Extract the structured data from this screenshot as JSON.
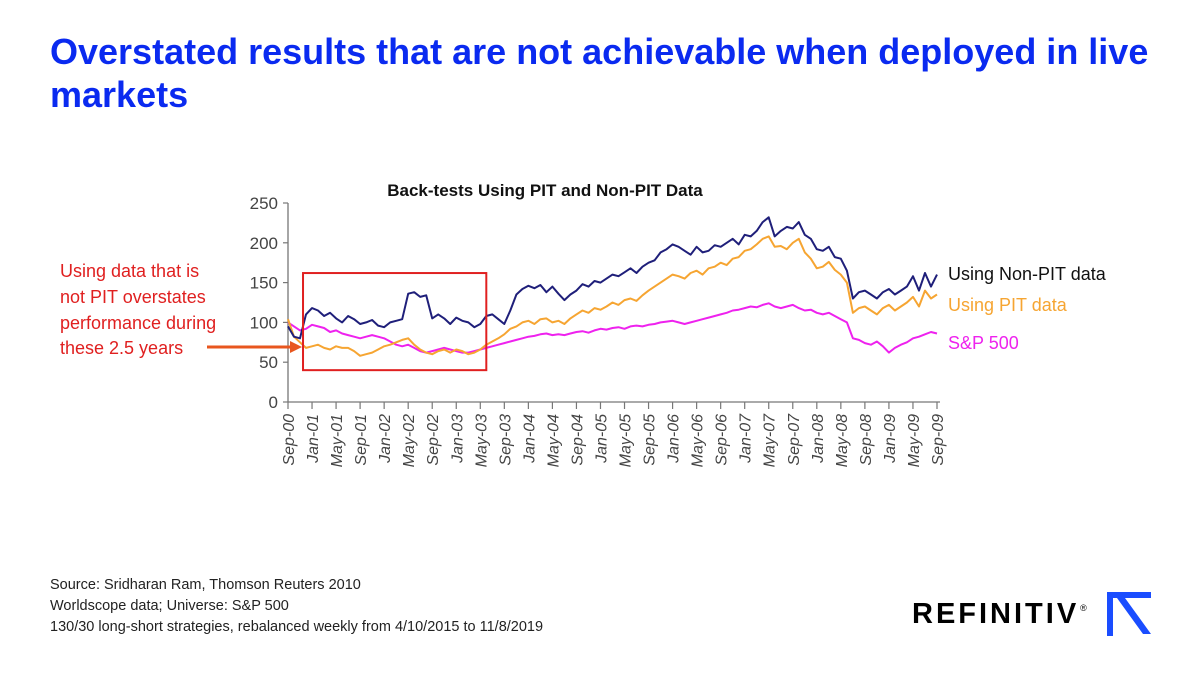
{
  "slide": {
    "title": "Overstated results that are not achievable when deployed in live markets"
  },
  "annotation": {
    "lines": [
      "Using data that is",
      "not PIT overstates",
      "performance during",
      "these 2.5 years"
    ]
  },
  "footer": {
    "lines": [
      "Source: Sridharan Ram, Thomson Reuters 2010",
      "Worldscope data; Universe: S&P 500",
      "130/30 long-short strategies, rebalanced weekly from 4/10/2015 to 11/8/2019"
    ]
  },
  "logo": {
    "text": "REFINITIV",
    "registered": "®"
  },
  "colors": {
    "title": "#0a2af0",
    "non_pit": "#1f1f7a",
    "pit": "#f6a532",
    "sp500": "#ee22ee",
    "annotation": "#e02020",
    "highlight_box": "#e02020",
    "arrow": "#e8561e",
    "logo_mark": "#1a4dff"
  },
  "chart_data": {
    "type": "line",
    "title": "Back-tests Using PIT and Non-PIT Data",
    "xlabel": "",
    "ylabel": "",
    "ylim": [
      0,
      250
    ],
    "yticks": [
      0,
      50,
      100,
      150,
      200,
      250
    ],
    "xlim": [
      0,
      108.5
    ],
    "xtick_labels": [
      "Sep-00",
      "Jan-01",
      "May-01",
      "Sep-01",
      "Jan-02",
      "May-02",
      "Sep-02",
      "Jan-03",
      "May-03",
      "Sep-03",
      "Jan-04",
      "May-04",
      "Sep-04",
      "Jan-05",
      "May-05",
      "Sep-05",
      "Jan-06",
      "May-06",
      "Sep-06",
      "Jan-07",
      "May-07",
      "Sep-07",
      "Jan-08",
      "May-08",
      "Sep-08",
      "Jan-09",
      "May-09",
      "Sep-09"
    ],
    "xtick_months": [
      0,
      4,
      8,
      12,
      16,
      20,
      24,
      28,
      32,
      36,
      40,
      44,
      48,
      52,
      56,
      60,
      64,
      68,
      72,
      76,
      80,
      84,
      88,
      92,
      96,
      100,
      104,
      108
    ],
    "highlight": {
      "from_month": 2.5,
      "to_month": 33,
      "y_from": 40,
      "y_to": 162
    },
    "series": [
      {
        "name": "Using Non-PIT data",
        "color": "#1f1f7a",
        "x": [
          0,
          1,
          2,
          3,
          4,
          5,
          6,
          7,
          8,
          9,
          10,
          11,
          12,
          13,
          14,
          15,
          16,
          17,
          18,
          19,
          20,
          21,
          22,
          23,
          24,
          25,
          26,
          27,
          28,
          29,
          30,
          31,
          32,
          33,
          34,
          35,
          36,
          37,
          38,
          39,
          40,
          41,
          42,
          43,
          44,
          45,
          46,
          47,
          48,
          49,
          50,
          51,
          52,
          53,
          54,
          55,
          56,
          57,
          58,
          59,
          60,
          61,
          62,
          63,
          64,
          65,
          66,
          67,
          68,
          69,
          70,
          71,
          72,
          73,
          74,
          75,
          76,
          77,
          78,
          79,
          80,
          81,
          82,
          83,
          84,
          85,
          86,
          87,
          88,
          89,
          90,
          91,
          92,
          93,
          94,
          95,
          96,
          97,
          98,
          99,
          100,
          101,
          102,
          103,
          104,
          105,
          106,
          107,
          108
        ],
        "y": [
          95,
          82,
          80,
          110,
          118,
          115,
          108,
          112,
          105,
          100,
          108,
          104,
          98,
          100,
          103,
          96,
          94,
          100,
          102,
          104,
          136,
          138,
          132,
          134,
          105,
          110,
          105,
          98,
          106,
          102,
          100,
          94,
          98,
          108,
          110,
          104,
          98,
          115,
          135,
          142,
          146,
          143,
          147,
          138,
          145,
          136,
          128,
          135,
          140,
          148,
          145,
          152,
          150,
          155,
          160,
          158,
          163,
          168,
          162,
          170,
          175,
          178,
          188,
          192,
          198,
          195,
          190,
          185,
          195,
          188,
          190,
          197,
          195,
          200,
          205,
          198,
          210,
          208,
          215,
          226,
          232,
          208,
          215,
          220,
          218,
          226,
          210,
          205,
          192,
          190,
          195,
          182,
          180,
          165,
          130,
          138,
          140,
          135,
          130,
          138,
          142,
          135,
          140,
          145,
          158,
          140,
          162,
          145,
          160
        ]
      },
      {
        "name": "Using PIT data",
        "color": "#f6a532",
        "x": [
          0,
          1,
          2,
          3,
          4,
          5,
          6,
          7,
          8,
          9,
          10,
          11,
          12,
          13,
          14,
          15,
          16,
          17,
          18,
          19,
          20,
          21,
          22,
          23,
          24,
          25,
          26,
          27,
          28,
          29,
          30,
          31,
          32,
          33,
          34,
          35,
          36,
          37,
          38,
          39,
          40,
          41,
          42,
          43,
          44,
          45,
          46,
          47,
          48,
          49,
          50,
          51,
          52,
          53,
          54,
          55,
          56,
          57,
          58,
          59,
          60,
          61,
          62,
          63,
          64,
          65,
          66,
          67,
          68,
          69,
          70,
          71,
          72,
          73,
          74,
          75,
          76,
          77,
          78,
          79,
          80,
          81,
          82,
          83,
          84,
          85,
          86,
          87,
          88,
          89,
          90,
          91,
          92,
          93,
          94,
          95,
          96,
          97,
          98,
          99,
          100,
          101,
          102,
          103,
          104,
          105,
          106,
          107,
          108
        ],
        "y": [
          104,
          82,
          75,
          68,
          70,
          72,
          68,
          66,
          70,
          68,
          68,
          64,
          58,
          60,
          62,
          66,
          70,
          72,
          75,
          78,
          80,
          72,
          66,
          62,
          60,
          64,
          66,
          62,
          66,
          64,
          60,
          62,
          66,
          72,
          76,
          80,
          85,
          92,
          95,
          100,
          102,
          98,
          104,
          105,
          100,
          102,
          98,
          105,
          110,
          115,
          112,
          118,
          116,
          120,
          125,
          122,
          128,
          130,
          127,
          134,
          140,
          145,
          150,
          155,
          160,
          158,
          155,
          162,
          165,
          160,
          168,
          170,
          175,
          172,
          180,
          182,
          190,
          192,
          198,
          205,
          208,
          195,
          196,
          192,
          200,
          205,
          188,
          180,
          168,
          170,
          176,
          166,
          160,
          150,
          112,
          118,
          120,
          115,
          110,
          118,
          122,
          115,
          120,
          125,
          132,
          120,
          140,
          130,
          135
        ]
      },
      {
        "name": "S&P 500",
        "color": "#ee22ee",
        "x": [
          0,
          1,
          2,
          3,
          4,
          5,
          6,
          7,
          8,
          9,
          10,
          11,
          12,
          13,
          14,
          15,
          16,
          17,
          18,
          19,
          20,
          21,
          22,
          23,
          24,
          25,
          26,
          27,
          28,
          29,
          30,
          31,
          32,
          33,
          34,
          35,
          36,
          37,
          38,
          39,
          40,
          41,
          42,
          43,
          44,
          45,
          46,
          47,
          48,
          49,
          50,
          51,
          52,
          53,
          54,
          55,
          56,
          57,
          58,
          59,
          60,
          61,
          62,
          63,
          64,
          65,
          66,
          67,
          68,
          69,
          70,
          71,
          72,
          73,
          74,
          75,
          76,
          77,
          78,
          79,
          80,
          81,
          82,
          83,
          84,
          85,
          86,
          87,
          88,
          89,
          90,
          91,
          92,
          93,
          94,
          95,
          96,
          97,
          98,
          99,
          100,
          101,
          102,
          103,
          104,
          105,
          106,
          107,
          108
        ],
        "y": [
          100,
          95,
          90,
          92,
          97,
          95,
          93,
          88,
          90,
          86,
          84,
          82,
          80,
          82,
          84,
          82,
          80,
          76,
          72,
          70,
          72,
          68,
          64,
          62,
          64,
          66,
          68,
          66,
          64,
          62,
          62,
          64,
          66,
          68,
          70,
          72,
          74,
          76,
          78,
          80,
          82,
          83,
          85,
          86,
          84,
          85,
          84,
          86,
          88,
          89,
          87,
          90,
          92,
          91,
          93,
          94,
          92,
          95,
          96,
          95,
          97,
          98,
          100,
          101,
          102,
          100,
          98,
          100,
          102,
          104,
          106,
          108,
          110,
          112,
          115,
          116,
          118,
          120,
          119,
          122,
          124,
          120,
          118,
          120,
          122,
          118,
          115,
          116,
          112,
          110,
          112,
          108,
          104,
          100,
          80,
          78,
          74,
          72,
          76,
          70,
          62,
          68,
          72,
          75,
          80,
          82,
          85,
          88,
          86
        ]
      }
    ]
  }
}
